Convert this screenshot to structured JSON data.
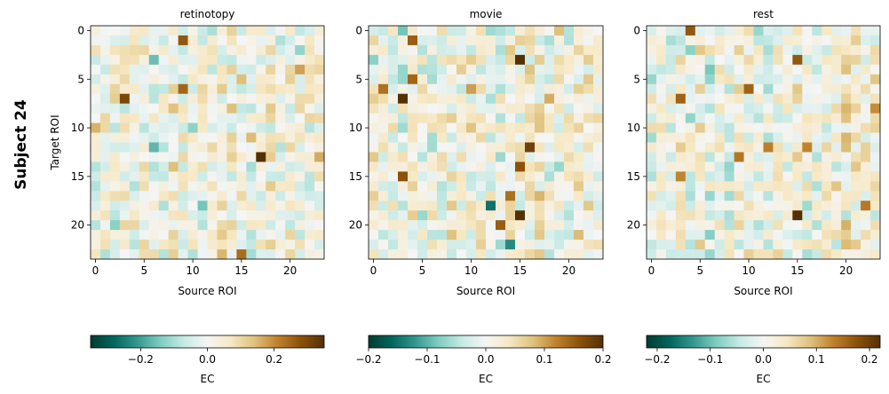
{
  "figure": {
    "suptitle": "Subject 24",
    "cmap": "BrBG_r"
  },
  "chart_data": [
    {
      "type": "heatmap",
      "title": "retinotopy",
      "xlabel": "Source ROI",
      "ylabel": "Target ROI",
      "n": 24,
      "xticks": [
        0,
        5,
        10,
        15,
        20
      ],
      "yticks": [
        0,
        5,
        10,
        15,
        20
      ],
      "colorbar": {
        "label": "EC",
        "vmin": -0.35,
        "vmax": 0.35,
        "ticks": [
          -0.2,
          0.0,
          0.2
        ],
        "tick_labels": [
          "−0.2",
          "0.0",
          "0.2"
        ]
      },
      "seed": 24101,
      "hot_cells": [
        [
          13,
          17,
          0.35
        ],
        [
          7,
          3,
          0.3
        ],
        [
          1,
          9,
          0.27
        ],
        [
          6,
          9,
          0.25
        ],
        [
          12,
          6,
          -0.17
        ],
        [
          3,
          6,
          -0.16
        ],
        [
          18,
          11,
          -0.15
        ],
        [
          23,
          15,
          0.24
        ]
      ]
    },
    {
      "type": "heatmap",
      "title": "movie",
      "xlabel": "Source ROI",
      "ylabel": "",
      "n": 24,
      "xticks": [
        0,
        5,
        10,
        15,
        20
      ],
      "yticks": [
        0,
        5,
        10,
        15,
        20
      ],
      "colorbar": {
        "label": "EC",
        "vmin": -0.2,
        "vmax": 0.2,
        "ticks": [
          -0.2,
          -0.1,
          0.0,
          0.1,
          0.2
        ],
        "tick_labels": [
          "−0.2",
          "−0.1",
          "0.0",
          "0.1",
          "0.2"
        ]
      },
      "seed": 24202,
      "hot_cells": [
        [
          3,
          15,
          0.2
        ],
        [
          19,
          15,
          0.2
        ],
        [
          7,
          3,
          0.2
        ],
        [
          12,
          16,
          0.18
        ],
        [
          14,
          15,
          0.16
        ],
        [
          15,
          3,
          0.16
        ],
        [
          1,
          4,
          0.15
        ],
        [
          20,
          13,
          0.15
        ],
        [
          18,
          12,
          -0.15
        ],
        [
          22,
          14,
          -0.13
        ]
      ]
    },
    {
      "type": "heatmap",
      "title": "rest",
      "xlabel": "Source ROI",
      "ylabel": "",
      "n": 24,
      "xticks": [
        0,
        5,
        10,
        15,
        20
      ],
      "yticks": [
        0,
        5,
        10,
        15,
        20
      ],
      "colorbar": {
        "label": "EC",
        "vmin": -0.22,
        "vmax": 0.22,
        "ticks": [
          -0.2,
          -0.1,
          0.0,
          0.1,
          0.2
        ],
        "tick_labels": [
          "−0.2",
          "−0.1",
          "0.0",
          "0.1",
          "0.2"
        ]
      },
      "seed": 24303,
      "hot_cells": [
        [
          19,
          15,
          0.22
        ],
        [
          0,
          4,
          0.17
        ],
        [
          3,
          15,
          0.17
        ],
        [
          6,
          10,
          0.16
        ],
        [
          7,
          3,
          0.16
        ],
        [
          18,
          22,
          0.14
        ],
        [
          12,
          16,
          0.13
        ],
        [
          15,
          3,
          0.13
        ]
      ]
    }
  ]
}
